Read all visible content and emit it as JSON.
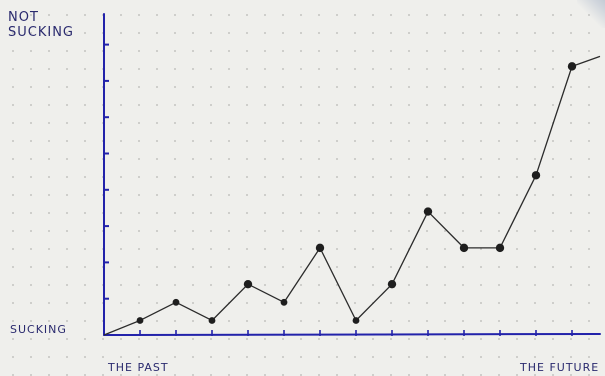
{
  "chart_data": {
    "type": "line",
    "y_top_label": "NOT\nSUCKING",
    "y_bottom_label": "SUCKING",
    "x_left_label": "THE PAST",
    "x_right_label": "THE FUTURE",
    "grid": true,
    "axis_color": "#2222aa",
    "line_color": "#2b2b2b",
    "ylim": [
      0,
      9
    ],
    "series": [
      {
        "x": [
          1,
          2,
          3,
          4,
          5,
          6,
          7,
          8,
          9,
          10,
          11,
          12,
          13
        ],
        "values": [
          0.4,
          0.9,
          0.4,
          1.4,
          0.9,
          2.4,
          0.4,
          1.4,
          3.4,
          2.4,
          2.4,
          4.4,
          7.4
        ]
      }
    ]
  }
}
